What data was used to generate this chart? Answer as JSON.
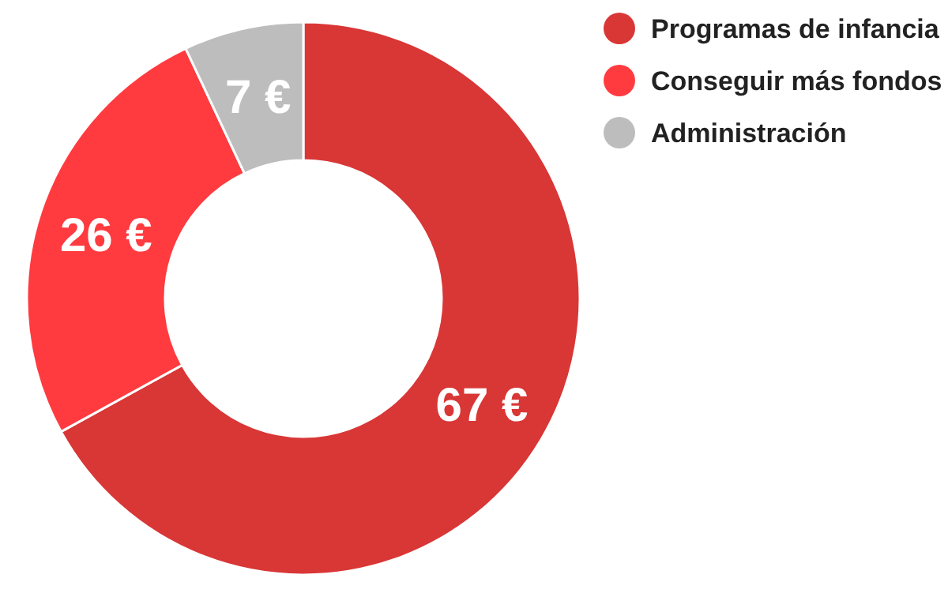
{
  "chart_data": {
    "type": "donut",
    "categories": [
      "Programas de infancia",
      "Conseguir más fondos",
      "Administración"
    ],
    "values": [
      67,
      26,
      7
    ],
    "colors": [
      "#d93636",
      "#ff3b3f",
      "#bdbdbd"
    ],
    "value_labels": [
      "67 €",
      "26 €",
      "7 €"
    ],
    "legend": "top right"
  }
}
